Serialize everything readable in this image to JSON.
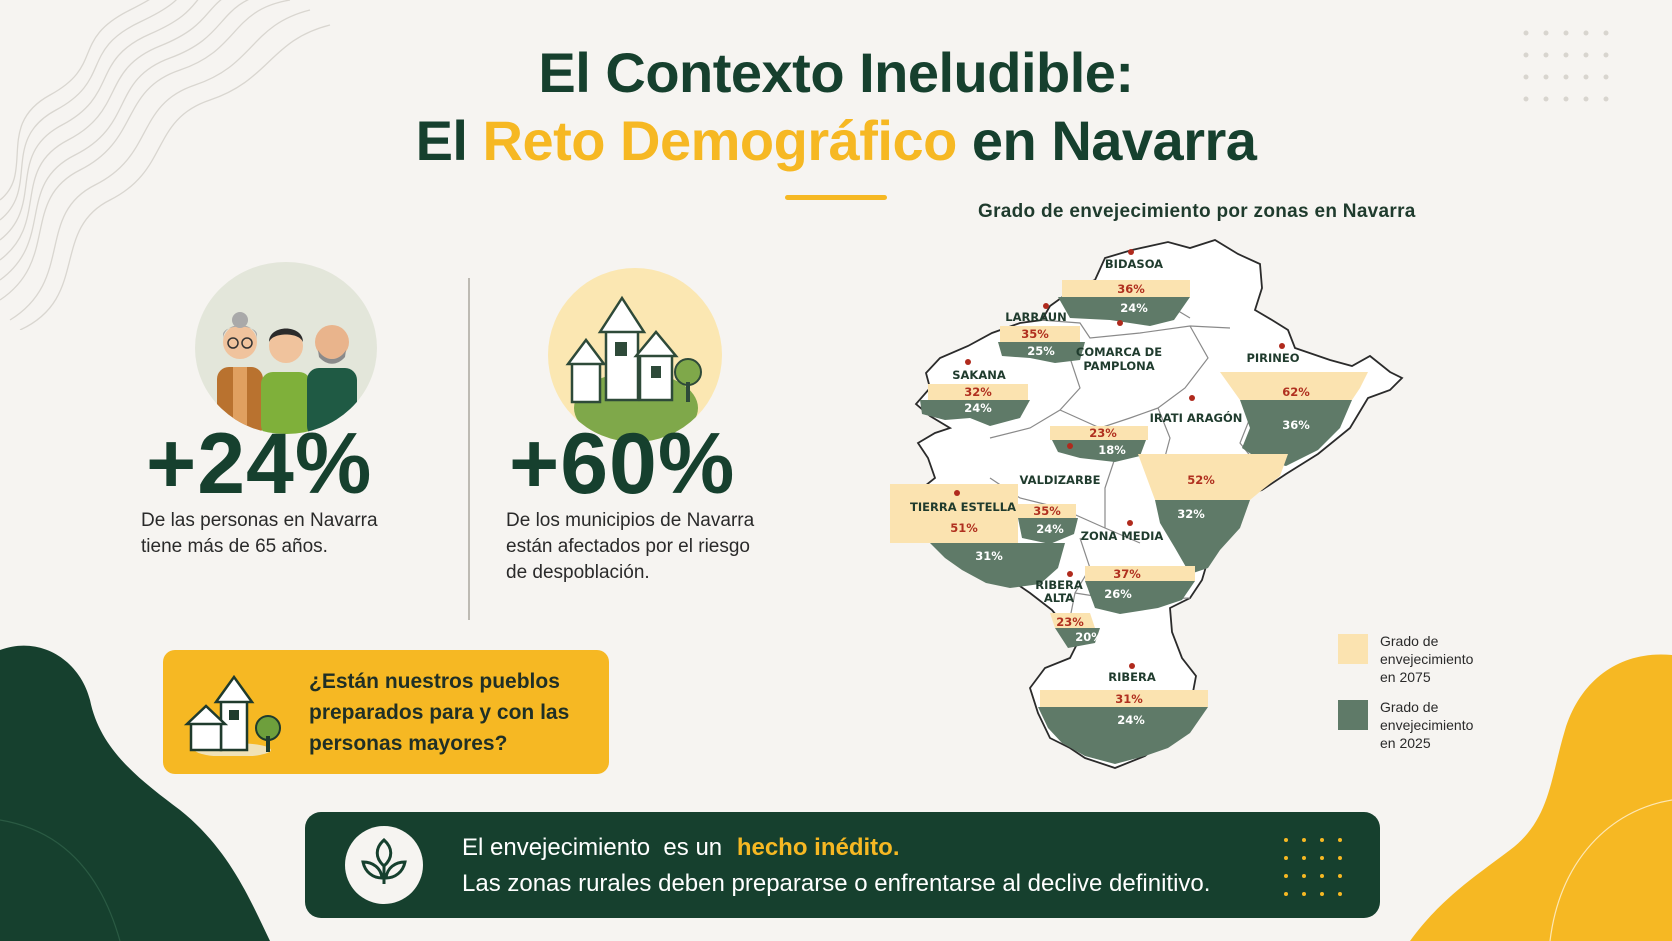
{
  "title": {
    "line1": "El Contexto Ineludible:",
    "line2_prefix": "El",
    "line2_accent": "Reto Demográfico",
    "line2_suffix": "en Navarra"
  },
  "stats": [
    {
      "value": "+24%",
      "description_line1": "De las personas en Navarra",
      "description_line2": "tiene más de 65 años."
    },
    {
      "value": "+60%",
      "description_line1": "De los municipios de Navarra",
      "description_line2": "están afectados por el riesgo",
      "description_line3": "de despoblación."
    }
  ],
  "question": {
    "line1": "¿Están nuestros pueblos",
    "line2": "preparados para y con las",
    "line3": "personas mayores?"
  },
  "banner": {
    "prefix": "El envejecimiento  es un",
    "highlight": "hecho inédito.",
    "line2": "Las zonas rurales deben prepararse o enfrentarse al declive definitivo."
  },
  "map": {
    "title": "Grado de envejecimiento por zonas en Navarra",
    "zones": [
      {
        "name": "BIDASOA",
        "p2075": "36%",
        "p2025": "24%"
      },
      {
        "name": "LARRAUN",
        "p2075": "35%",
        "p2025": "25%"
      },
      {
        "name_line1": "COMARCA DE",
        "name_line2": "PAMPLONA",
        "p2075": "23%",
        "p2025": "18%"
      },
      {
        "name": "SAKANA",
        "p2075": "32%",
        "p2025": "24%"
      },
      {
        "name": "PIRINEO",
        "p2075": "62%",
        "p2025": "36%"
      },
      {
        "name": "IRATI ARAGÓN",
        "p2075": "52%",
        "p2025": "32%"
      },
      {
        "name": "VALDIZARBE",
        "p2075": "35%",
        "p2025": "24%"
      },
      {
        "name": "TIERRA ESTELLA",
        "p2075": "51%",
        "p2025": "31%"
      },
      {
        "name": "ZONA MEDIA",
        "p2075": "37%",
        "p2025": "26%"
      },
      {
        "name_line1": "RIBERA",
        "name_line2": "ALTA",
        "p2075": "23%",
        "p2025": "20%"
      },
      {
        "name": "RIBERA",
        "p2075": "31%",
        "p2025": "24%"
      }
    ],
    "legend": [
      {
        "color": "#fbe3b0",
        "line1": "Grado de",
        "line2": "envejecimiento",
        "line3": "en 2075"
      },
      {
        "color": "#5f7a68",
        "line1": "Grado de",
        "line2": "envejecimiento",
        "line3": "en 2025"
      }
    ]
  },
  "colors": {
    "dark_green": "#16402e",
    "yellow": "#f6b823",
    "light_yellow": "#fbe3b0",
    "grey_green": "#5f7a68",
    "background": "#f6f4f1"
  },
  "icons": [
    "people-icon",
    "village-icon",
    "house-icon",
    "leaf-icon"
  ]
}
